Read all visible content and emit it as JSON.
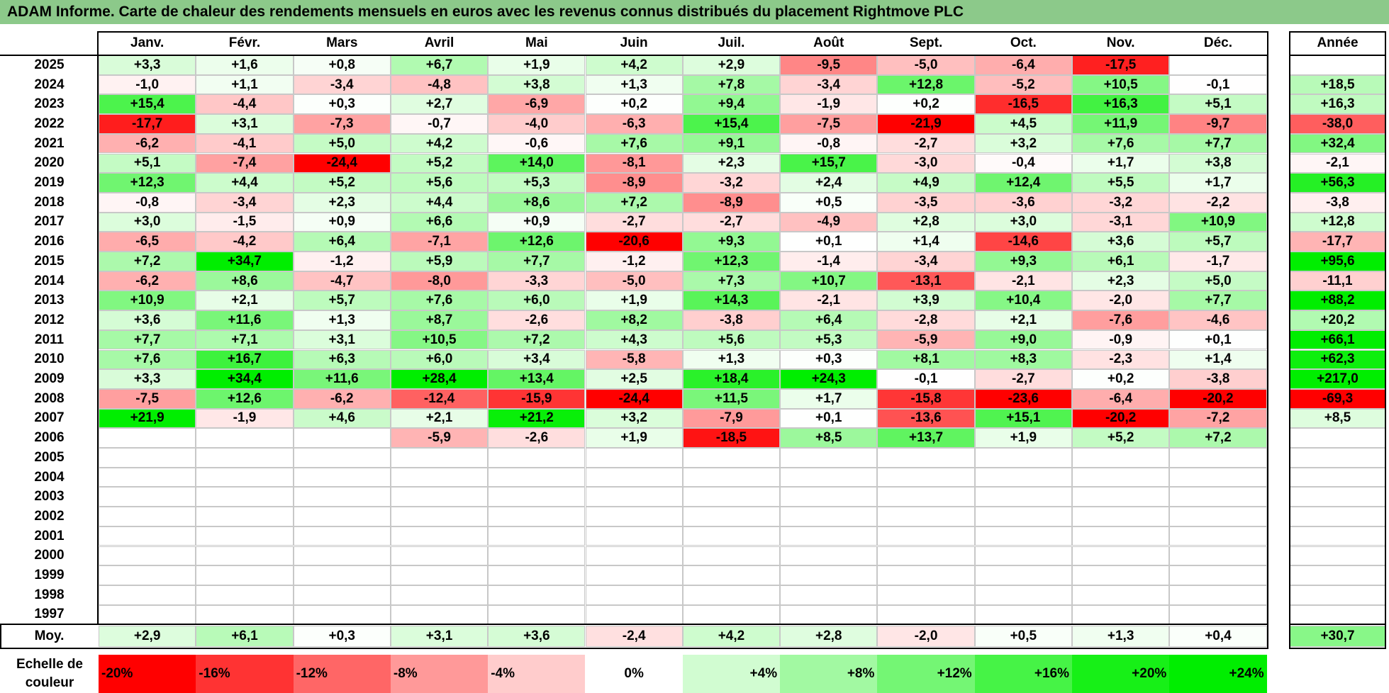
{
  "title": "ADAM Informe. Carte de chaleur des rendements mensuels en euros avec les revenus connus distribués du placement Rightmove PLC",
  "chart_data": {
    "type": "heatmap",
    "months": [
      "Janv.",
      "Févr.",
      "Mars",
      "Avril",
      "Mai",
      "Juin",
      "Juil.",
      "Août",
      "Sept.",
      "Oct.",
      "Nov.",
      "Déc."
    ],
    "year_header": "Année",
    "rows": [
      {
        "year": "2025",
        "values": [
          "+3,3",
          "+1,6",
          "+0,8",
          "+6,7",
          "+1,9",
          "+4,2",
          "+2,9",
          "-9,5",
          "-5,0",
          "-6,4",
          "-17,5",
          ""
        ],
        "annual": ""
      },
      {
        "year": "2024",
        "values": [
          "-1,0",
          "+1,1",
          "-3,4",
          "-4,8",
          "+3,8",
          "+1,3",
          "+7,8",
          "-3,4",
          "+12,8",
          "-5,2",
          "+10,5",
          "-0,1"
        ],
        "annual": "+18,5"
      },
      {
        "year": "2023",
        "values": [
          "+15,4",
          "-4,4",
          "+0,3",
          "+2,7",
          "-6,9",
          "+0,2",
          "+9,4",
          "-1,9",
          "+0,2",
          "-16,5",
          "+16,3",
          "+5,1"
        ],
        "annual": "+16,3"
      },
      {
        "year": "2022",
        "values": [
          "-17,7",
          "+3,1",
          "-7,3",
          "-0,7",
          "-4,0",
          "-6,3",
          "+15,4",
          "-7,5",
          "-21,9",
          "+4,5",
          "+11,9",
          "-9,7"
        ],
        "annual": "-38,0"
      },
      {
        "year": "2021",
        "values": [
          "-6,2",
          "-4,1",
          "+5,0",
          "+4,2",
          "-0,6",
          "+7,6",
          "+9,1",
          "-0,8",
          "-2,7",
          "+3,2",
          "+7,6",
          "+7,7"
        ],
        "annual": "+32,4"
      },
      {
        "year": "2020",
        "values": [
          "+5,1",
          "-7,4",
          "-24,4",
          "+5,2",
          "+14,0",
          "-8,1",
          "+2,3",
          "+15,7",
          "-3,0",
          "-0,4",
          "+1,7",
          "+3,8"
        ],
        "annual": "-2,1"
      },
      {
        "year": "2019",
        "values": [
          "+12,3",
          "+4,4",
          "+5,2",
          "+5,6",
          "+5,3",
          "-8,9",
          "-3,2",
          "+2,4",
          "+4,9",
          "+12,4",
          "+5,5",
          "+1,7"
        ],
        "annual": "+56,3"
      },
      {
        "year": "2018",
        "values": [
          "-0,8",
          "-3,4",
          "+2,3",
          "+4,4",
          "+8,6",
          "+7,2",
          "-8,9",
          "+0,5",
          "-3,5",
          "-3,6",
          "-3,2",
          "-2,2"
        ],
        "annual": "-3,8"
      },
      {
        "year": "2017",
        "values": [
          "+3,0",
          "-1,5",
          "+0,9",
          "+6,6",
          "+0,9",
          "-2,7",
          "-2,7",
          "-4,9",
          "+2,8",
          "+3,0",
          "-3,1",
          "+10,9"
        ],
        "annual": "+12,8"
      },
      {
        "year": "2016",
        "values": [
          "-6,5",
          "-4,2",
          "+6,4",
          "-7,1",
          "+12,6",
          "-20,6",
          "+9,3",
          "+0,1",
          "+1,4",
          "-14,6",
          "+3,6",
          "+5,7"
        ],
        "annual": "-17,7"
      },
      {
        "year": "2015",
        "values": [
          "+7,2",
          "+34,7",
          "-1,2",
          "+5,9",
          "+7,7",
          "-1,2",
          "+12,3",
          "-1,4",
          "-3,4",
          "+9,3",
          "+6,1",
          "-1,7"
        ],
        "annual": "+95,6"
      },
      {
        "year": "2014",
        "values": [
          "-6,2",
          "+8,6",
          "-4,7",
          "-8,0",
          "-3,3",
          "-5,0",
          "+7,3",
          "+10,7",
          "-13,1",
          "-2,1",
          "+2,3",
          "+5,0"
        ],
        "annual": "-11,1"
      },
      {
        "year": "2013",
        "values": [
          "+10,9",
          "+2,1",
          "+5,7",
          "+7,6",
          "+6,0",
          "+1,9",
          "+14,3",
          "-2,1",
          "+3,9",
          "+10,4",
          "-2,0",
          "+7,7"
        ],
        "annual": "+88,2"
      },
      {
        "year": "2012",
        "values": [
          "+3,6",
          "+11,6",
          "+1,3",
          "+8,7",
          "-2,6",
          "+8,2",
          "-3,8",
          "+6,4",
          "-2,8",
          "+2,1",
          "-7,6",
          "-4,6"
        ],
        "annual": "+20,2"
      },
      {
        "year": "2011",
        "values": [
          "+7,7",
          "+7,1",
          "+3,1",
          "+10,5",
          "+7,2",
          "+4,3",
          "+5,6",
          "+5,3",
          "-5,9",
          "+9,0",
          "-0,9",
          "+0,1"
        ],
        "annual": "+66,1"
      },
      {
        "year": "2010",
        "values": [
          "+7,6",
          "+16,7",
          "+6,3",
          "+6,0",
          "+3,4",
          "-5,8",
          "+1,3",
          "+0,3",
          "+8,1",
          "+8,3",
          "-2,3",
          "+1,4"
        ],
        "annual": "+62,3"
      },
      {
        "year": "2009",
        "values": [
          "+3,3",
          "+34,4",
          "+11,6",
          "+28,4",
          "+13,4",
          "+2,5",
          "+18,4",
          "+24,3",
          "-0,1",
          "-2,7",
          "+0,2",
          "-3,8"
        ],
        "annual": "+217,0"
      },
      {
        "year": "2008",
        "values": [
          "-7,5",
          "+12,6",
          "-6,2",
          "-12,4",
          "-15,9",
          "-24,4",
          "+11,5",
          "+1,7",
          "-15,8",
          "-23,6",
          "-6,4",
          "-20,2"
        ],
        "annual": "-69,3"
      },
      {
        "year": "2007",
        "values": [
          "+21,9",
          "-1,9",
          "+4,6",
          "+2,1",
          "+21,2",
          "+3,2",
          "-7,9",
          "+0,1",
          "-13,6",
          "+15,1",
          "-20,2",
          "-7,2"
        ],
        "annual": "+8,5"
      },
      {
        "year": "2006",
        "values": [
          "",
          "",
          "",
          "-5,9",
          "-2,6",
          "+1,9",
          "-18,5",
          "+8,5",
          "+13,7",
          "+1,9",
          "+5,2",
          "+7,2"
        ],
        "annual": ""
      },
      {
        "year": "2005",
        "values": [
          "",
          "",
          "",
          "",
          "",
          "",
          "",
          "",
          "",
          "",
          "",
          ""
        ],
        "annual": ""
      },
      {
        "year": "2004",
        "values": [
          "",
          "",
          "",
          "",
          "",
          "",
          "",
          "",
          "",
          "",
          "",
          ""
        ],
        "annual": ""
      },
      {
        "year": "2003",
        "values": [
          "",
          "",
          "",
          "",
          "",
          "",
          "",
          "",
          "",
          "",
          "",
          ""
        ],
        "annual": ""
      },
      {
        "year": "2002",
        "values": [
          "",
          "",
          "",
          "",
          "",
          "",
          "",
          "",
          "",
          "",
          "",
          ""
        ],
        "annual": ""
      },
      {
        "year": "2001",
        "values": [
          "",
          "",
          "",
          "",
          "",
          "",
          "",
          "",
          "",
          "",
          "",
          ""
        ],
        "annual": ""
      },
      {
        "year": "2000",
        "values": [
          "",
          "",
          "",
          "",
          "",
          "",
          "",
          "",
          "",
          "",
          "",
          ""
        ],
        "annual": ""
      },
      {
        "year": "1999",
        "values": [
          "",
          "",
          "",
          "",
          "",
          "",
          "",
          "",
          "",
          "",
          "",
          ""
        ],
        "annual": ""
      },
      {
        "year": "1998",
        "values": [
          "",
          "",
          "",
          "",
          "",
          "",
          "",
          "",
          "",
          "",
          "",
          ""
        ],
        "annual": ""
      },
      {
        "year": "1997",
        "values": [
          "",
          "",
          "",
          "",
          "",
          "",
          "",
          "",
          "",
          "",
          "",
          ""
        ],
        "annual": ""
      }
    ],
    "average": {
      "label": "Moy.",
      "values": [
        "+2,9",
        "+6,1",
        "+0,3",
        "+3,1",
        "+3,6",
        "-2,4",
        "+4,2",
        "+2,8",
        "-2,0",
        "+0,5",
        "+1,3",
        "+0,4"
      ],
      "annual": "+30,7"
    },
    "legend": {
      "label": "Echelle de couleur",
      "steps": [
        "-20%",
        "-16%",
        "-12%",
        "-8%",
        "-4%",
        "0%",
        "+4%",
        "+8%",
        "+12%",
        "+16%",
        "+20%",
        "+24%"
      ],
      "step_values": [
        -20,
        -16,
        -12,
        -8,
        -4,
        0,
        4,
        8,
        12,
        16,
        20,
        24
      ]
    },
    "colors": {
      "negative_max": "#ff0000",
      "neutral": "#ffffff",
      "positive_max": "#00ee00",
      "title_bar": "#8cc98a"
    }
  }
}
